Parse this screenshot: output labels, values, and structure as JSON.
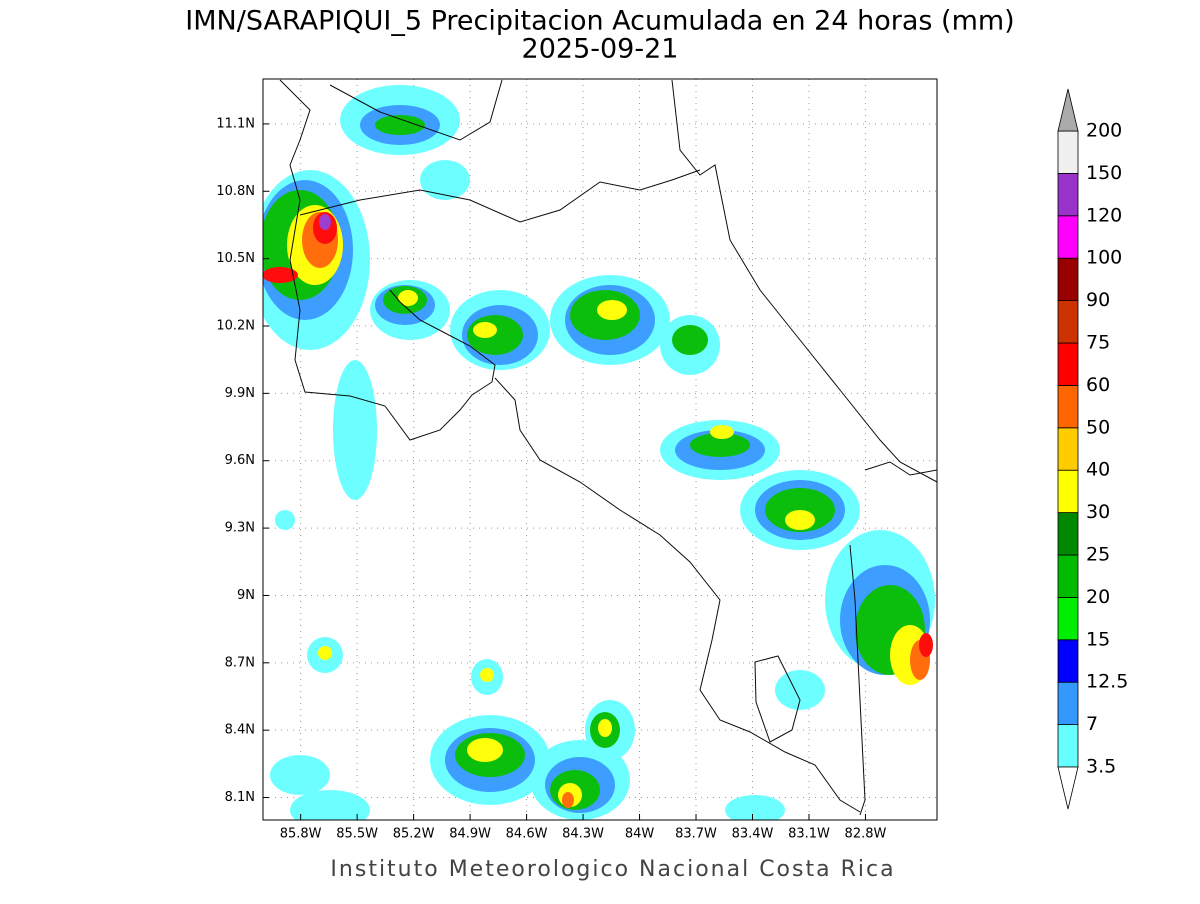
{
  "map": {
    "title": "IMN/SARAPIQUI_5 Precipitacion Acumulada en 24 horas (mm)",
    "subtitle": "2025-09-21",
    "footer": "Instituto Meteorologico Nacional Costa Rica",
    "xlim": [
      -86.0,
      -82.42
    ],
    "ylim": [
      8.0,
      11.3
    ],
    "xticks": [
      {
        "value": -85.8,
        "label": "85.8W"
      },
      {
        "value": -85.5,
        "label": "85.5W"
      },
      {
        "value": -85.2,
        "label": "85.2W"
      },
      {
        "value": -84.9,
        "label": "84.9W"
      },
      {
        "value": -84.6,
        "label": "84.6W"
      },
      {
        "value": -84.3,
        "label": "84.3W"
      },
      {
        "value": -84.0,
        "label": "84W"
      },
      {
        "value": -83.7,
        "label": "83.7W"
      },
      {
        "value": -83.4,
        "label": "83.4W"
      },
      {
        "value": -83.1,
        "label": "83.1W"
      },
      {
        "value": -82.8,
        "label": "82.8W"
      }
    ],
    "yticks": [
      {
        "value": 8.1,
        "label": "8.1N"
      },
      {
        "value": 8.4,
        "label": "8.4N"
      },
      {
        "value": 8.7,
        "label": "8.7N"
      },
      {
        "value": 9.0,
        "label": "9N"
      },
      {
        "value": 9.3,
        "label": "9.3N"
      },
      {
        "value": 9.6,
        "label": "9.6N"
      },
      {
        "value": 9.9,
        "label": "9.9N"
      },
      {
        "value": 10.2,
        "label": "10.2N"
      },
      {
        "value": 10.5,
        "label": "10.5N"
      },
      {
        "value": 10.8,
        "label": "10.8N"
      },
      {
        "value": 11.1,
        "label": "11.1N"
      }
    ],
    "grid": true,
    "colorbar": {
      "levels": [
        3.5,
        7,
        12.5,
        15,
        20,
        25,
        30,
        40,
        50,
        60,
        75,
        90,
        100,
        120,
        150,
        200
      ],
      "colors": [
        "#66ffff",
        "#3399ff",
        "#0000ff",
        "#00ee00",
        "#00bb00",
        "#008800",
        "#ffff00",
        "#ffcc00",
        "#ff6600",
        "#ff0000",
        "#cc3300",
        "#990000",
        "#ff00ff",
        "#9933cc",
        "#f0f0f0"
      ],
      "under_color": "#ffffff",
      "over_color": "#aaaaaa"
    }
  }
}
